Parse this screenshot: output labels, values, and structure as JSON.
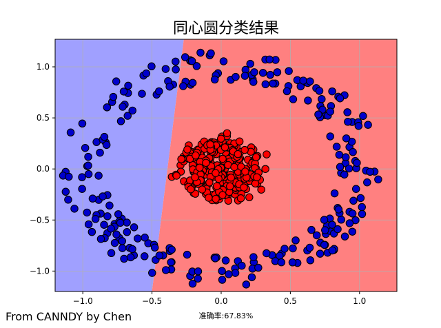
{
  "chart_data": {
    "type": "scatter",
    "title": "同心圆分类结果",
    "xlabel": "准确率:67.83%",
    "ylabel": "",
    "xlim": [
      -1.2,
      1.27
    ],
    "ylim": [
      -1.2,
      1.27
    ],
    "xticks": [
      -1.0,
      -0.5,
      0.0,
      0.5,
      1.0
    ],
    "xtick_labels": [
      "−1.0",
      "−0.5",
      "0.0",
      "0.5",
      "1.0"
    ],
    "yticks": [
      -1.0,
      -0.5,
      0.0,
      0.5,
      1.0
    ],
    "ytick_labels": [
      "−1.0",
      "−0.5",
      "0.0",
      "0.5",
      "1.0"
    ],
    "grid": true,
    "decision_boundary": {
      "line_points": [
        [
          -0.5,
          -1.2
        ],
        [
          -0.27,
          1.27
        ]
      ],
      "left_region_color": "#a0a0ff",
      "right_region_color": "#ff8080"
    },
    "series": [
      {
        "color": "#0000cc",
        "description": "outer ring points, radius about 1.0",
        "radius_range": [
          0.85,
          1.15
        ]
      },
      {
        "color": "#ff0000",
        "description": "inner disk points, radius about 0.3",
        "radius_range": [
          0.0,
          0.38
        ]
      }
    ]
  },
  "footer": {
    "credit": "From CANNDY by Chen"
  },
  "colors": {
    "edge": "#000000",
    "grid": "#b0b0b0"
  }
}
